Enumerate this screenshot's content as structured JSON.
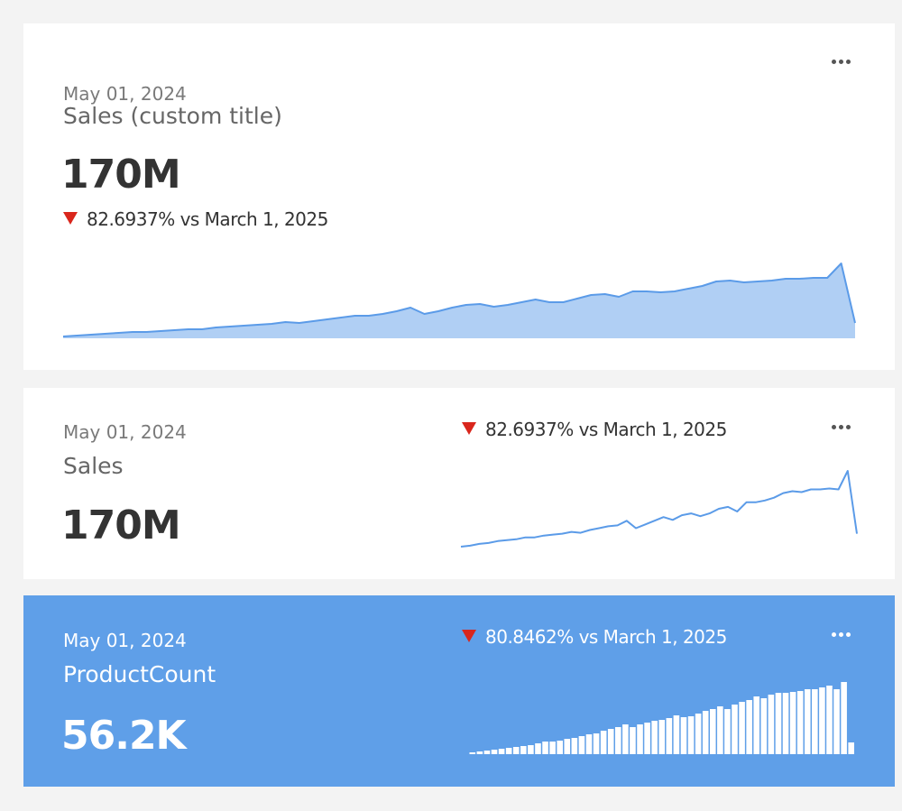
{
  "cards": [
    {
      "date": "May 01, 2024",
      "title": "Sales (custom title)",
      "value": "170M",
      "delta": "82.6937% vs March 1, 2025",
      "sparkline": {
        "type": "area",
        "color": "#5b9be8",
        "fill": "#b0cff4",
        "values": [
          2,
          3,
          4,
          5,
          6,
          7,
          7,
          8,
          9,
          10,
          10,
          12,
          13,
          14,
          15,
          16,
          18,
          17,
          19,
          21,
          23,
          25,
          25,
          27,
          30,
          34,
          27,
          30,
          34,
          37,
          38,
          35,
          37,
          40,
          43,
          40,
          40,
          44,
          48,
          49,
          46,
          52,
          52,
          51,
          52,
          55,
          58,
          63,
          64,
          62,
          63,
          64,
          66,
          66,
          67,
          67,
          83,
          17
        ]
      }
    },
    {
      "date": "May 01, 2024",
      "title": "Sales",
      "value": "170M",
      "delta": "82.6937% vs March 1, 2025",
      "sparkline": {
        "type": "line",
        "color": "#5b9be8",
        "values": [
          2,
          3,
          5,
          6,
          8,
          9,
          10,
          12,
          12,
          14,
          15,
          16,
          18,
          17,
          20,
          22,
          24,
          25,
          30,
          22,
          26,
          30,
          34,
          31,
          36,
          38,
          35,
          38,
          43,
          45,
          40,
          50,
          50,
          52,
          55,
          60,
          62,
          61,
          64,
          64,
          65,
          64,
          84,
          16
        ]
      }
    },
    {
      "date": "May 01, 2024",
      "title": "ProductCount",
      "value": "56.2K",
      "delta": "80.8462% vs March 1, 2025",
      "sparkline": {
        "type": "bar",
        "color": "#ffffff",
        "values": [
          2,
          3,
          4,
          5,
          6,
          7,
          8,
          9,
          10,
          12,
          14,
          14,
          15,
          17,
          18,
          20,
          22,
          23,
          26,
          28,
          30,
          33,
          30,
          33,
          35,
          37,
          38,
          40,
          43,
          41,
          42,
          45,
          48,
          50,
          53,
          50,
          55,
          58,
          60,
          64,
          62,
          66,
          68,
          68,
          69,
          70,
          72,
          72,
          74,
          76,
          72,
          80,
          13
        ]
      }
    }
  ]
}
